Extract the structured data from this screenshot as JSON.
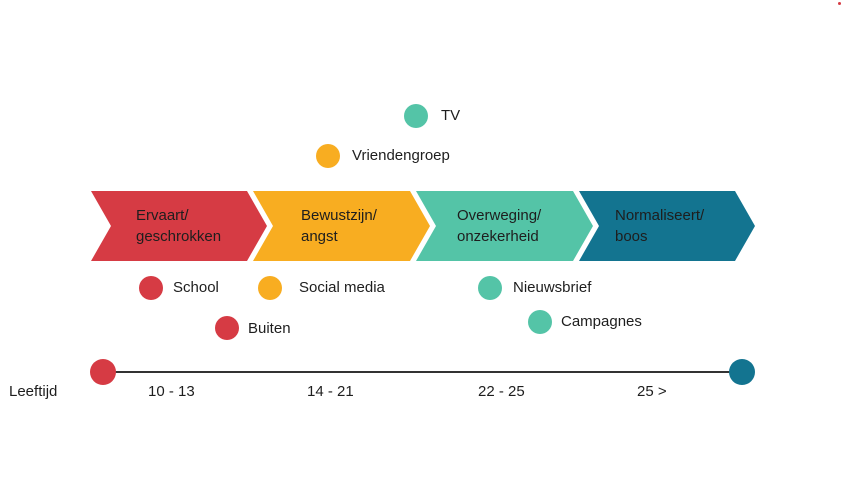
{
  "colors": {
    "red": "#d63b44",
    "orange": "#f8ad21",
    "teal": "#54c4a7",
    "blue": "#137490",
    "text": "#1e1e1e",
    "axis": "#333333"
  },
  "stages": [
    {
      "label": "Ervaart/\ngeschrokken",
      "color": "#d63b44"
    },
    {
      "label": "Bewustzijn/\nangst",
      "color": "#f8ad21"
    },
    {
      "label": "Overweging/\nonzekerheid",
      "color": "#54c4a7"
    },
    {
      "label": "Normaliseert/\nboos",
      "color": "#137490"
    }
  ],
  "channels": {
    "tv": "TV",
    "vriendengroep": "Vriendengroep",
    "school": "School",
    "social_media": "Social media",
    "nieuwsbrief": "Nieuwsbrief",
    "buiten": "Buiten",
    "campagnes": "Campagnes"
  },
  "timeline": {
    "label": "Leeftijd",
    "ranges": [
      "10 - 13",
      "14 - 21",
      "22 - 25",
      "25 >"
    ]
  }
}
